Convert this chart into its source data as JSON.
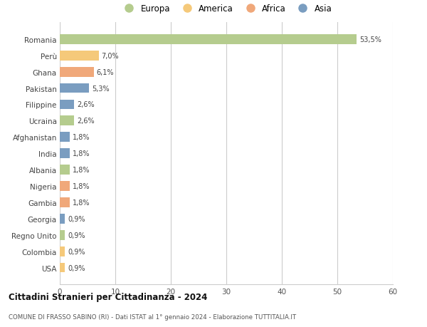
{
  "countries": [
    "Romania",
    "Perù",
    "Ghana",
    "Pakistan",
    "Filippine",
    "Ucraina",
    "Afghanistan",
    "India",
    "Albania",
    "Nigeria",
    "Gambia",
    "Georgia",
    "Regno Unito",
    "Colombia",
    "USA"
  ],
  "values": [
    53.5,
    7.0,
    6.1,
    5.3,
    2.6,
    2.6,
    1.8,
    1.8,
    1.8,
    1.8,
    1.8,
    0.9,
    0.9,
    0.9,
    0.9
  ],
  "labels": [
    "53,5%",
    "7,0%",
    "6,1%",
    "5,3%",
    "2,6%",
    "2,6%",
    "1,8%",
    "1,8%",
    "1,8%",
    "1,8%",
    "1,8%",
    "0,9%",
    "0,9%",
    "0,9%",
    "0,9%"
  ],
  "colors": [
    "#b5cc8e",
    "#f5c97a",
    "#f0a87a",
    "#7a9dc0",
    "#7a9dc0",
    "#b5cc8e",
    "#7a9dc0",
    "#7a9dc0",
    "#b5cc8e",
    "#f0a87a",
    "#f0a87a",
    "#7a9dc0",
    "#b5cc8e",
    "#f5c97a",
    "#f5c97a"
  ],
  "legend_labels": [
    "Europa",
    "America",
    "Africa",
    "Asia"
  ],
  "legend_colors": [
    "#b5cc8e",
    "#f5c97a",
    "#f0a87a",
    "#7a9dc0"
  ],
  "xlim": [
    0,
    60
  ],
  "xticks": [
    0,
    10,
    20,
    30,
    40,
    50,
    60
  ],
  "title": "Cittadini Stranieri per Cittadinanza - 2024",
  "subtitle": "COMUNE DI FRASSO SABINO (RI) - Dati ISTAT al 1° gennaio 2024 - Elaborazione TUTTITALIA.IT",
  "background_color": "#ffffff",
  "grid_color": "#cccccc"
}
